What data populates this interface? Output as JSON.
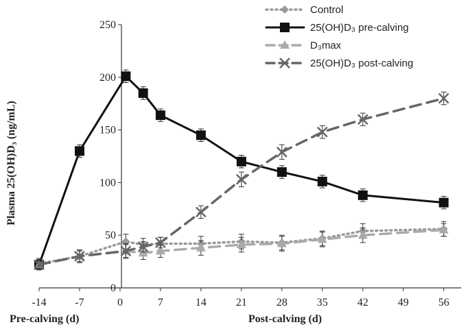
{
  "chart_data": {
    "type": "line",
    "ylabel": "Plasma 25(OH)D₃ (ng/mL)",
    "xlabel_left": "Pre-calving (d)",
    "xlabel_right": "Post-calving (d)",
    "ylim": [
      0,
      250
    ],
    "yticks": [
      0,
      50,
      100,
      150,
      200,
      250
    ],
    "xlim": [
      -14,
      59
    ],
    "xticks": [
      -14,
      -7,
      0,
      7,
      14,
      21,
      28,
      35,
      42,
      49,
      56
    ],
    "xtick_labels": [
      "-14",
      "-7",
      "0",
      "7",
      "14",
      "21",
      "28",
      "35",
      "42",
      "49",
      "56"
    ],
    "grid": false,
    "legend_position": "top-right",
    "series": [
      {
        "name": "Control",
        "color": "#999999",
        "marker": "diamond",
        "line_style": "dotted",
        "x": [
          -14,
          -7,
          1,
          4,
          7,
          14,
          21,
          28,
          35,
          42,
          56
        ],
        "y": [
          23,
          30,
          44,
          41,
          42,
          42,
          44,
          43,
          47,
          54,
          56
        ],
        "err": [
          5,
          6,
          7,
          6,
          6,
          7,
          7,
          7,
          7,
          7,
          7
        ]
      },
      {
        "name": "25(OH)D₃ pre-calving",
        "color": "#111111",
        "marker": "square",
        "line_style": "solid",
        "x": [
          -14,
          -7,
          1,
          4,
          7,
          14,
          21,
          28,
          35,
          42,
          56
        ],
        "y": [
          22,
          130,
          201,
          185,
          164,
          145,
          120,
          110,
          101,
          88,
          81
        ],
        "err": [
          4,
          6,
          6,
          6,
          6,
          6,
          6,
          6,
          6,
          6,
          6
        ]
      },
      {
        "name": "D₃max",
        "color": "#aaaaaa",
        "marker": "triangle",
        "line_style": "dashed",
        "x": [
          -14,
          -7,
          1,
          4,
          7,
          14,
          21,
          28,
          35,
          42,
          56
        ],
        "y": [
          22,
          30,
          35,
          33,
          35,
          38,
          41,
          42,
          46,
          50,
          55
        ],
        "err": [
          5,
          6,
          7,
          6,
          6,
          7,
          7,
          7,
          7,
          7,
          6
        ]
      },
      {
        "name": "25(OH)D₃ post-calving",
        "color": "#666666",
        "marker": "x",
        "line_style": "dashed",
        "x": [
          -14,
          -7,
          1,
          4,
          7,
          14,
          21,
          28,
          35,
          42,
          56
        ],
        "y": [
          22,
          30,
          35,
          39,
          43,
          72,
          103,
          129,
          148,
          160,
          180
        ],
        "err": [
          4,
          5,
          6,
          5,
          5,
          6,
          7,
          7,
          6,
          6,
          6
        ]
      }
    ]
  }
}
